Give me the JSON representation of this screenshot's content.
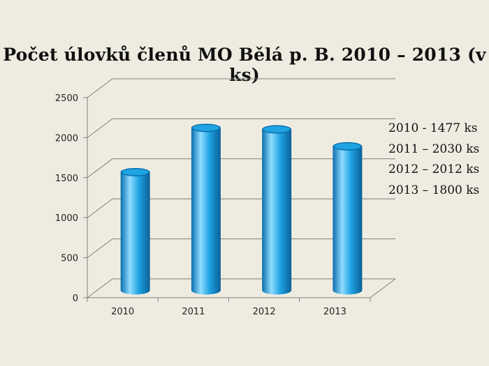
{
  "slide": {
    "title": "Počet úlovků členů MO Bělá p. B. 2010 – 2013 (v ks)",
    "notes": [
      "2010 - 1477 ks",
      "2011 – 2030 ks",
      "2012 – 2012 ks",
      "2013 – 1800 ks"
    ]
  },
  "chart_data": {
    "type": "bar",
    "style": "3d-cylinder",
    "title": "Počet úlovků členů MO Bělá p. B. 2010 – 2013 (v ks)",
    "categories": [
      "2010",
      "2011",
      "2012",
      "2013"
    ],
    "values": [
      1477,
      2030,
      2012,
      1800
    ],
    "ylim": [
      0,
      2500
    ],
    "yticks": [
      0,
      500,
      1000,
      1500,
      2000,
      2500
    ],
    "xlabel": "",
    "ylabel": "",
    "grid": true,
    "legend": "none",
    "colors": {
      "bar": "#1fa3e3",
      "bar_dark": "#0b6fae",
      "bar_light": "#8fdcff",
      "grid": "#7f7f7f",
      "background": "#eeece1"
    }
  }
}
